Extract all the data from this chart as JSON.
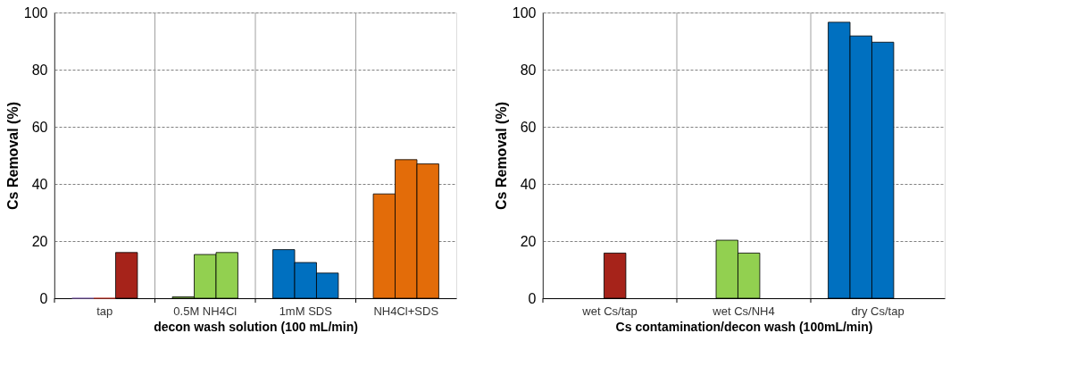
{
  "chart_data": [
    {
      "type": "bar",
      "categories": [
        "tap",
        "0.5M NH4Cl",
        "1mM SDS",
        "NH4Cl+SDS"
      ],
      "xlabel": "decon wash solution (100 mL/min)",
      "ylabel": "Cs Removal (%)",
      "ylim": [
        0,
        100
      ],
      "yticks": [
        0,
        20,
        40,
        60,
        80,
        100
      ],
      "grid": true,
      "series": [
        {
          "values": [
            0,
            0.5,
            17,
            36.5
          ],
          "colors": [
            "#7f5fa8",
            "#92d050",
            "#0070c0",
            "#e36c09"
          ]
        },
        {
          "values": [
            0,
            15.3,
            12.5,
            48.5
          ],
          "colors": [
            "#c0392b",
            "#92d050",
            "#0070c0",
            "#e36c09"
          ]
        },
        {
          "values": [
            16,
            16,
            8.8,
            47
          ],
          "colors": [
            "#a6231a",
            "#92d050",
            "#0070c0",
            "#e36c09"
          ]
        }
      ]
    },
    {
      "type": "bar",
      "categories": [
        "wet Cs/tap",
        "wet Cs/NH4",
        "dry Cs/tap"
      ],
      "xlabel": "Cs contamination/decon wash (100mL/min)",
      "ylabel": "Cs Removal (%)",
      "ylim": [
        0,
        100
      ],
      "yticks": [
        0,
        20,
        40,
        60,
        80,
        100
      ],
      "grid": true,
      "series": [
        {
          "values": [
            null,
            null,
            96.6
          ],
          "colors": [
            "#a6231a",
            "#92d050",
            "#0070c0"
          ]
        },
        {
          "values": [
            null,
            20.3,
            91.8
          ],
          "colors": [
            "#a6231a",
            "#92d050",
            "#0070c0"
          ]
        },
        {
          "values": [
            15.8,
            15.8,
            89.6
          ],
          "colors": [
            "#a6231a",
            "#92d050",
            "#0070c0"
          ]
        }
      ]
    }
  ]
}
